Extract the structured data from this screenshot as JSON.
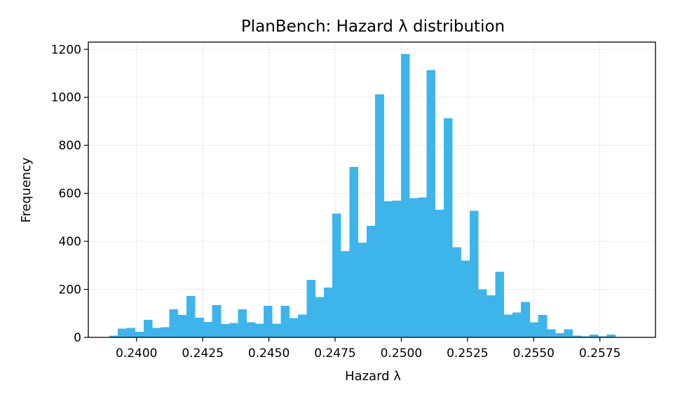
{
  "chart_data": {
    "type": "bar",
    "title": "PlanBench: Hazard λ distribution",
    "xlabel": "Hazard λ",
    "ylabel": "Frequency",
    "xlim": [
      0.23818,
      0.2596
    ],
    "ylim": [
      0,
      1230
    ],
    "grid": true,
    "bar_color": "#3db5eb",
    "bin_start": 0.23897,
    "bin_width": 0.000324,
    "x_ticks": [
      {
        "value": 0.24,
        "label": "0.2400"
      },
      {
        "value": 0.2425,
        "label": "0.2425"
      },
      {
        "value": 0.245,
        "label": "0.2450"
      },
      {
        "value": 0.2475,
        "label": "0.2475"
      },
      {
        "value": 0.25,
        "label": "0.2500"
      },
      {
        "value": 0.2525,
        "label": "0.2525"
      },
      {
        "value": 0.255,
        "label": "0.2550"
      },
      {
        "value": 0.2575,
        "label": "0.2575"
      }
    ],
    "y_ticks": [
      {
        "value": 0,
        "label": "0"
      },
      {
        "value": 200,
        "label": "200"
      },
      {
        "value": 400,
        "label": "400"
      },
      {
        "value": 600,
        "label": "600"
      },
      {
        "value": 800,
        "label": "800"
      },
      {
        "value": 1000,
        "label": "1000"
      },
      {
        "value": 1200,
        "label": "1200"
      }
    ],
    "values": [
      8,
      37,
      40,
      24,
      73,
      40,
      42,
      117,
      93,
      173,
      82,
      65,
      135,
      55,
      60,
      117,
      63,
      57,
      132,
      57,
      132,
      80,
      95,
      240,
      168,
      207,
      515,
      360,
      710,
      395,
      465,
      1013,
      567,
      570,
      1180,
      580,
      583,
      1113,
      532,
      913,
      375,
      320,
      527,
      200,
      175,
      273,
      95,
      103,
      147,
      63,
      93,
      33,
      18,
      33,
      8,
      5,
      12,
      5,
      12
    ]
  }
}
